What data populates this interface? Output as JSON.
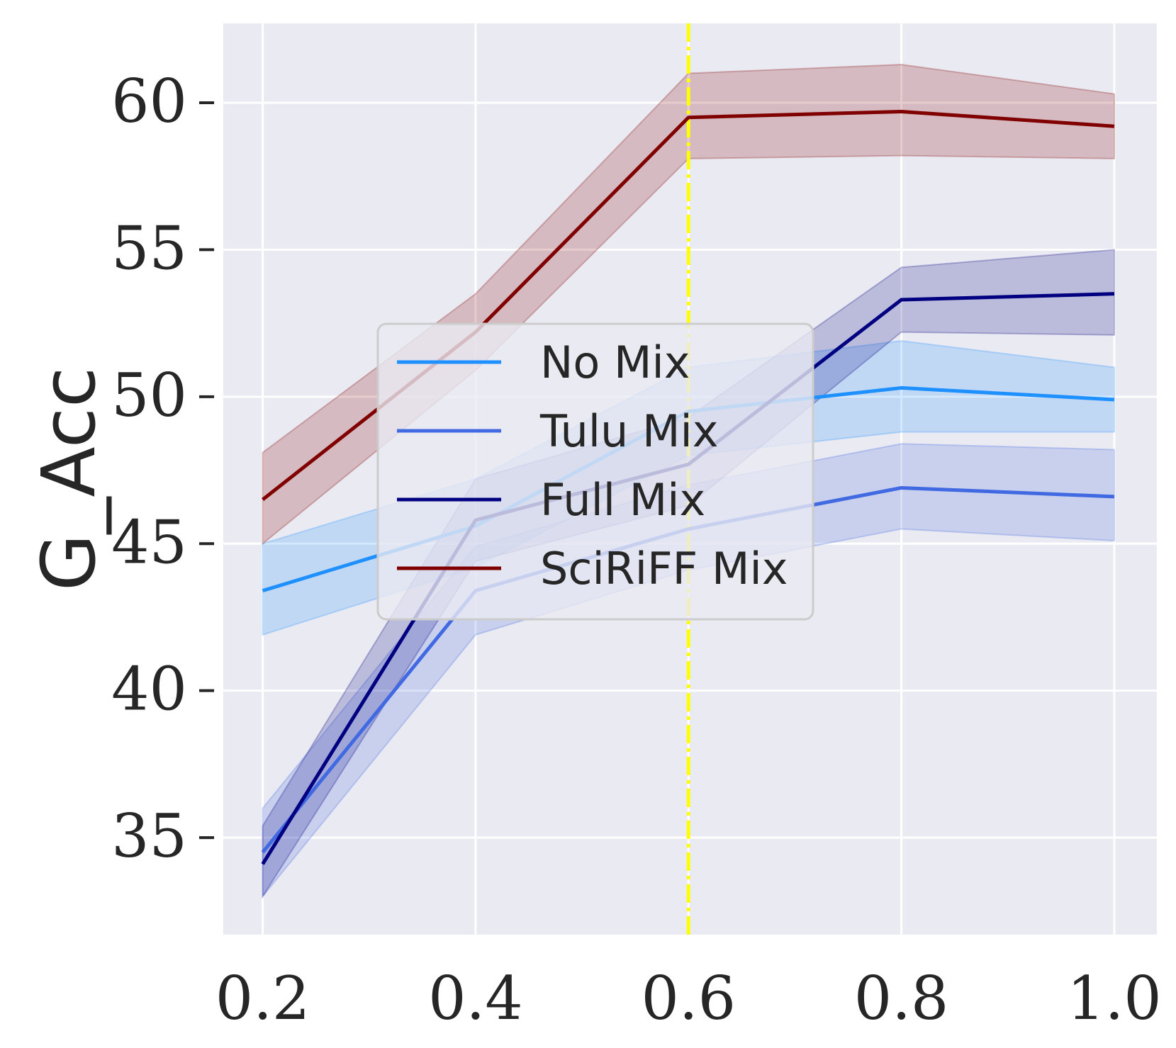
{
  "chart_data": {
    "type": "line",
    "title": "",
    "xlabel": "",
    "ylabel": "G_Acc",
    "x": [
      0.2,
      0.4,
      0.6,
      0.8,
      1.0
    ],
    "x_tick_labels": [
      "0.2",
      "0.4",
      "0.6",
      "0.8",
      "1.0"
    ],
    "y_ticks": [
      35,
      40,
      45,
      50,
      55,
      60
    ],
    "y_tick_labels": [
      "35",
      "40",
      "45",
      "50",
      "55",
      "60"
    ],
    "xlim": [
      0.163,
      1.04
    ],
    "ylim": [
      31.7,
      62.7
    ],
    "grid": true,
    "legend_position": "center-left",
    "vline": {
      "x": 0.6,
      "color": "#ffff00",
      "style": "dash-dot"
    },
    "series": [
      {
        "name": "No Mix",
        "color": "#1e90ff",
        "values": [
          43.4,
          45.6,
          49.5,
          50.3,
          49.9
        ],
        "lower": [
          41.9,
          44.2,
          48.0,
          48.8,
          48.8
        ],
        "upper": [
          45.0,
          47.2,
          51.0,
          51.9,
          51.0
        ]
      },
      {
        "name": "Tulu Mix",
        "color": "#4169e1",
        "values": [
          34.5,
          43.4,
          45.5,
          46.9,
          46.6
        ],
        "lower": [
          33.0,
          41.9,
          44.1,
          45.5,
          45.1
        ],
        "upper": [
          36.0,
          44.9,
          47.0,
          48.4,
          48.2
        ]
      },
      {
        "name": "Full Mix",
        "color": "#000080",
        "values": [
          34.1,
          45.8,
          47.7,
          53.3,
          53.5
        ],
        "lower": [
          33.0,
          44.4,
          46.3,
          52.2,
          52.1
        ],
        "upper": [
          35.4,
          47.2,
          49.3,
          54.4,
          55.0
        ]
      },
      {
        "name": "SciRiFF Mix",
        "color": "#800000",
        "values": [
          46.5,
          52.2,
          59.5,
          59.7,
          59.2
        ],
        "lower": [
          45.0,
          50.9,
          58.1,
          58.2,
          58.1
        ],
        "upper": [
          48.1,
          53.5,
          61.0,
          61.3,
          60.3
        ]
      }
    ]
  }
}
